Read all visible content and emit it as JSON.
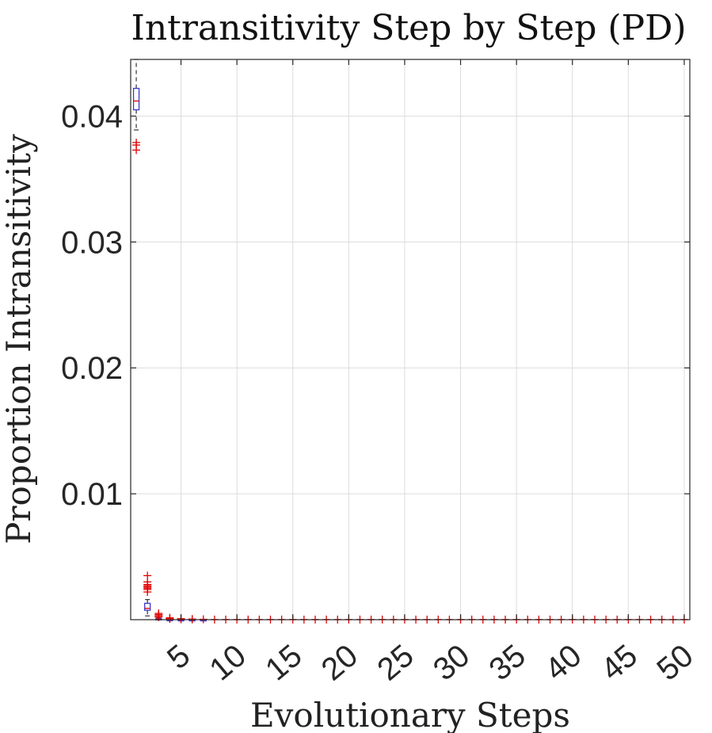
{
  "chart_data": {
    "type": "box",
    "title": "Intransitivity Step by Step (PD)",
    "xlabel": "Evolutionary Steps",
    "ylabel": "Proportion Intransitivity",
    "xlim": [
      0.5,
      50.5
    ],
    "ylim": [
      0,
      0.0445
    ],
    "x_ticks": [
      5,
      10,
      15,
      20,
      25,
      30,
      35,
      40,
      45,
      50
    ],
    "x_tick_labels": [
      "5",
      "10",
      "15",
      "20",
      "25",
      "30",
      "35",
      "40",
      "45",
      "50"
    ],
    "y_ticks": [
      0.01,
      0.02,
      0.03,
      0.04
    ],
    "y_tick_labels": [
      "0.01",
      "0.02",
      "0.03",
      "0.04"
    ],
    "grid": true,
    "colors": {
      "box": "#3a3ad0",
      "median": "#e00000",
      "outlier": "#e00000",
      "whisker": "#333333",
      "grid": "#dcdcdc"
    },
    "boxes": [
      {
        "step": 1,
        "q1": 0.0405,
        "median": 0.0412,
        "q3": 0.0422,
        "whisker_low": 0.0389,
        "whisker_high": 0.0445,
        "outliers": [
          0.0373,
          0.0377,
          0.0379
        ]
      },
      {
        "step": 2,
        "q1": 0.00075,
        "median": 0.0009,
        "q3": 0.0013,
        "whisker_low": 0.0003,
        "whisker_high": 0.0016,
        "outliers": [
          0.0022,
          0.0024,
          0.0025,
          0.0026,
          0.0027,
          0.0028,
          0.003,
          0.0035
        ]
      },
      {
        "step": 3,
        "q1": 2e-05,
        "median": 4e-05,
        "q3": 8e-05,
        "whisker_low": 0.0,
        "whisker_high": 0.00015,
        "outliers": [
          0.0002,
          0.0003,
          0.0004,
          0.0005
        ]
      },
      {
        "step": 4,
        "q1": 0.0,
        "median": 0.0,
        "q3": 1e-05,
        "whisker_low": 0.0,
        "whisker_high": 3e-05,
        "outliers": [
          6e-05,
          0.0001,
          0.00015
        ]
      },
      {
        "step": 5,
        "q1": 0.0,
        "median": 0.0,
        "q3": 0.0,
        "whisker_low": 0.0,
        "whisker_high": 0.0,
        "outliers": [
          3e-05,
          8e-05
        ]
      },
      {
        "step": 6,
        "q1": 0.0,
        "median": 0.0,
        "q3": 0.0,
        "whisker_low": 0.0,
        "whisker_high": 0.0,
        "outliers": [
          2e-05,
          5e-05
        ]
      },
      {
        "step": 7,
        "q1": 0.0,
        "median": 0.0,
        "q3": 0.0,
        "whisker_low": 0.0,
        "whisker_high": 0.0,
        "outliers": [
          3e-05
        ]
      }
    ],
    "remaining_steps": {
      "from": 8,
      "to": 50,
      "q1": 0.0,
      "median": 0.0,
      "q3": 0.0,
      "outliers": [
        1e-05
      ]
    }
  }
}
